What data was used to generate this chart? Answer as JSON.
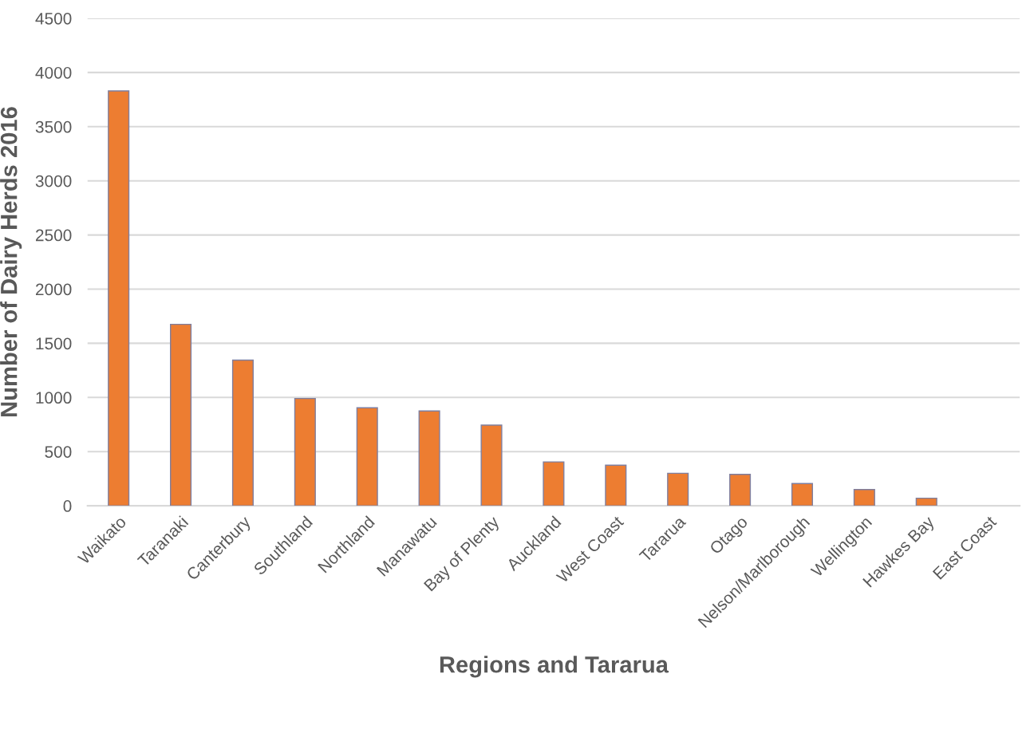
{
  "chart_data": {
    "type": "bar",
    "xlabel": "Regions and Tararua",
    "ylabel": "Number of Dairy Herds 2016",
    "categories": [
      "Waikato",
      "Taranaki",
      "Canterbury",
      "Southland",
      "Northland",
      "Manawatu",
      "Bay of Plenty",
      "Auckland",
      "West Coast",
      "Tararua",
      "Otago",
      "Nelson/Marlborough",
      "Wellington",
      "Hawkes Bay",
      "East Coast"
    ],
    "values": [
      3830,
      1675,
      1345,
      990,
      905,
      875,
      745,
      405,
      375,
      300,
      290,
      205,
      150,
      70,
      0
    ],
    "color": "#ed7d31",
    "ylim": [
      0,
      4500
    ],
    "yticks": [
      0,
      500,
      1000,
      1500,
      2000,
      2500,
      3000,
      3500,
      4000,
      4500
    ],
    "grid": "y",
    "legend": false
  }
}
